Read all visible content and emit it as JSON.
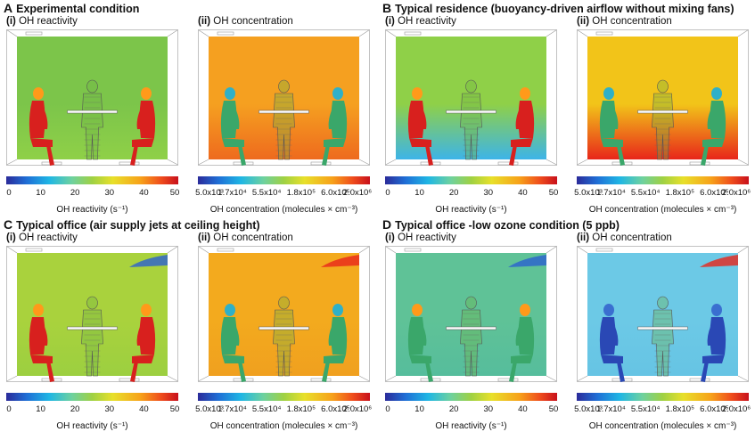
{
  "panels": [
    {
      "letter": "A",
      "title": "Experimental condition",
      "sub": [
        {
          "num": "(i)",
          "label": "OH reactivity"
        },
        {
          "num": "(ii)",
          "label": "OH concentration"
        }
      ],
      "colors": {
        "reactivity_bg": "#7cc54a",
        "reactivity_floor": "#8fd048",
        "concentration_bg": "#f5a020",
        "concentration_floor": "#ee6a1e"
      }
    },
    {
      "letter": "B",
      "title": "Typical residence (buoyancy-driven airflow without mixing fans)",
      "sub": [
        {
          "num": "(i)",
          "label": "OH reactivity"
        },
        {
          "num": "(ii)",
          "label": "OH concentration"
        }
      ],
      "colors": {
        "reactivity_bg": "#8fd048",
        "reactivity_floor": "#3db4e8",
        "concentration_bg": "#f2c419",
        "concentration_floor": "#e8261a"
      }
    },
    {
      "letter": "C",
      "title": "Typical office (air supply jets at ceiling height)",
      "sub": [
        {
          "num": "(i)",
          "label": "OH reactivity"
        },
        {
          "num": "(ii)",
          "label": "OH concentration"
        }
      ],
      "colors": {
        "reactivity_bg": "#a9d23d",
        "reactivity_floor": "#9ccf40",
        "concentration_bg": "#f3aa1e",
        "concentration_floor": "#f0a01f"
      }
    },
    {
      "letter": "D",
      "title": "Typical office -low ozone condition (5 ppb)",
      "sub": [
        {
          "num": "(i)",
          "label": "OH reactivity"
        },
        {
          "num": "(ii)",
          "label": "OH concentration"
        }
      ],
      "colors": {
        "reactivity_bg": "#5fc297",
        "reactivity_floor": "#56bd9c",
        "concentration_bg": "#6cc9e6",
        "concentration_floor": "#66c4e4"
      }
    }
  ],
  "colorbars": {
    "reactivity": {
      "ticks": [
        "0",
        "10",
        "20",
        "30",
        "40",
        "50"
      ],
      "title": "OH reactivity (s⁻¹)"
    },
    "concentration": {
      "ticks": [
        "5.0x10³",
        "1.7x10⁴",
        "5.5x10⁴",
        "1.8x10⁵",
        "6.0x10⁵",
        "2.0x10⁶"
      ],
      "title": "OH concentration (molecules × cm⁻³)"
    }
  },
  "figure_colors": {
    "body_hot": "#d8201e",
    "body_head": "#ff9a1a",
    "body_cool": "#3aa76a",
    "body_deep": "#2a48b5",
    "outline": "#999999"
  }
}
